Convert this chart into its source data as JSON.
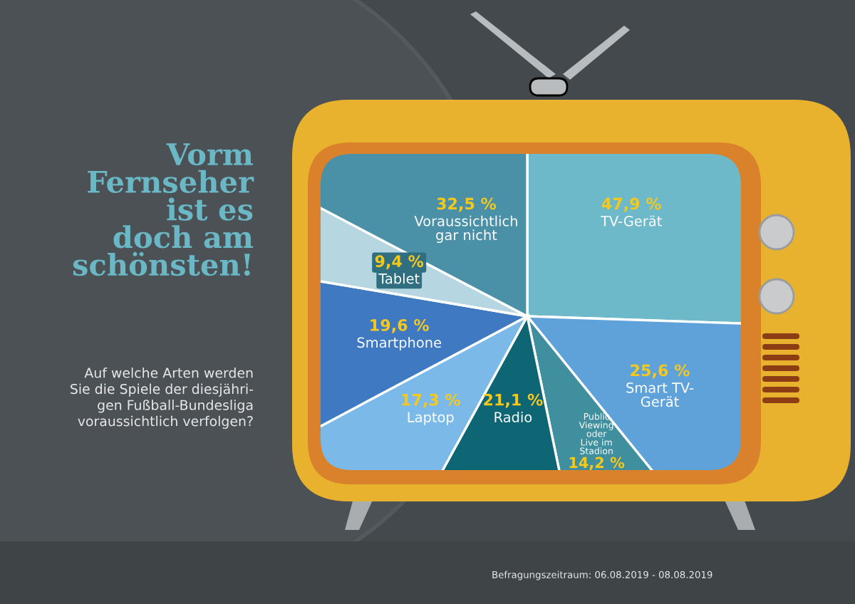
{
  "chart_data": {
    "type": "pie",
    "title": "Vorm\nFernseher\nist es\ndoch am\nschönsten!",
    "subtitle": "Auf welche Arten werden\nSie die Spiele der diesjähri-\ngen Fußball-Bundesliga\nvoraussichtlich verfolgen?",
    "categories": [
      "TV-Gerät",
      "Smart TV-\nGerät",
      "Public\nViewing\noder\nLive im\nStadion",
      "Radio",
      "Laptop",
      "Smartphone",
      "Tablet",
      "Voraussichtlich\ngar nicht"
    ],
    "values": [
      47.9,
      25.6,
      14.2,
      21.1,
      17.3,
      19.6,
      9.4,
      32.5
    ],
    "value_labels": [
      "47,9 %",
      "25,6 %",
      "14,2 %",
      "21,1 %",
      "17,3 %",
      "19,6 %",
      "9,4 %",
      "32,5 %"
    ],
    "colors": [
      "#6db8c9",
      "#5fa2da",
      "#3f8f9e",
      "#0e6675",
      "#7bb9e9",
      "#3e79c2",
      "#b6d6e1",
      "#4a90a7"
    ],
    "annotations": [
      "Befragungszeitraum: 06.08.2019 - 08.08.2019"
    ]
  }
}
